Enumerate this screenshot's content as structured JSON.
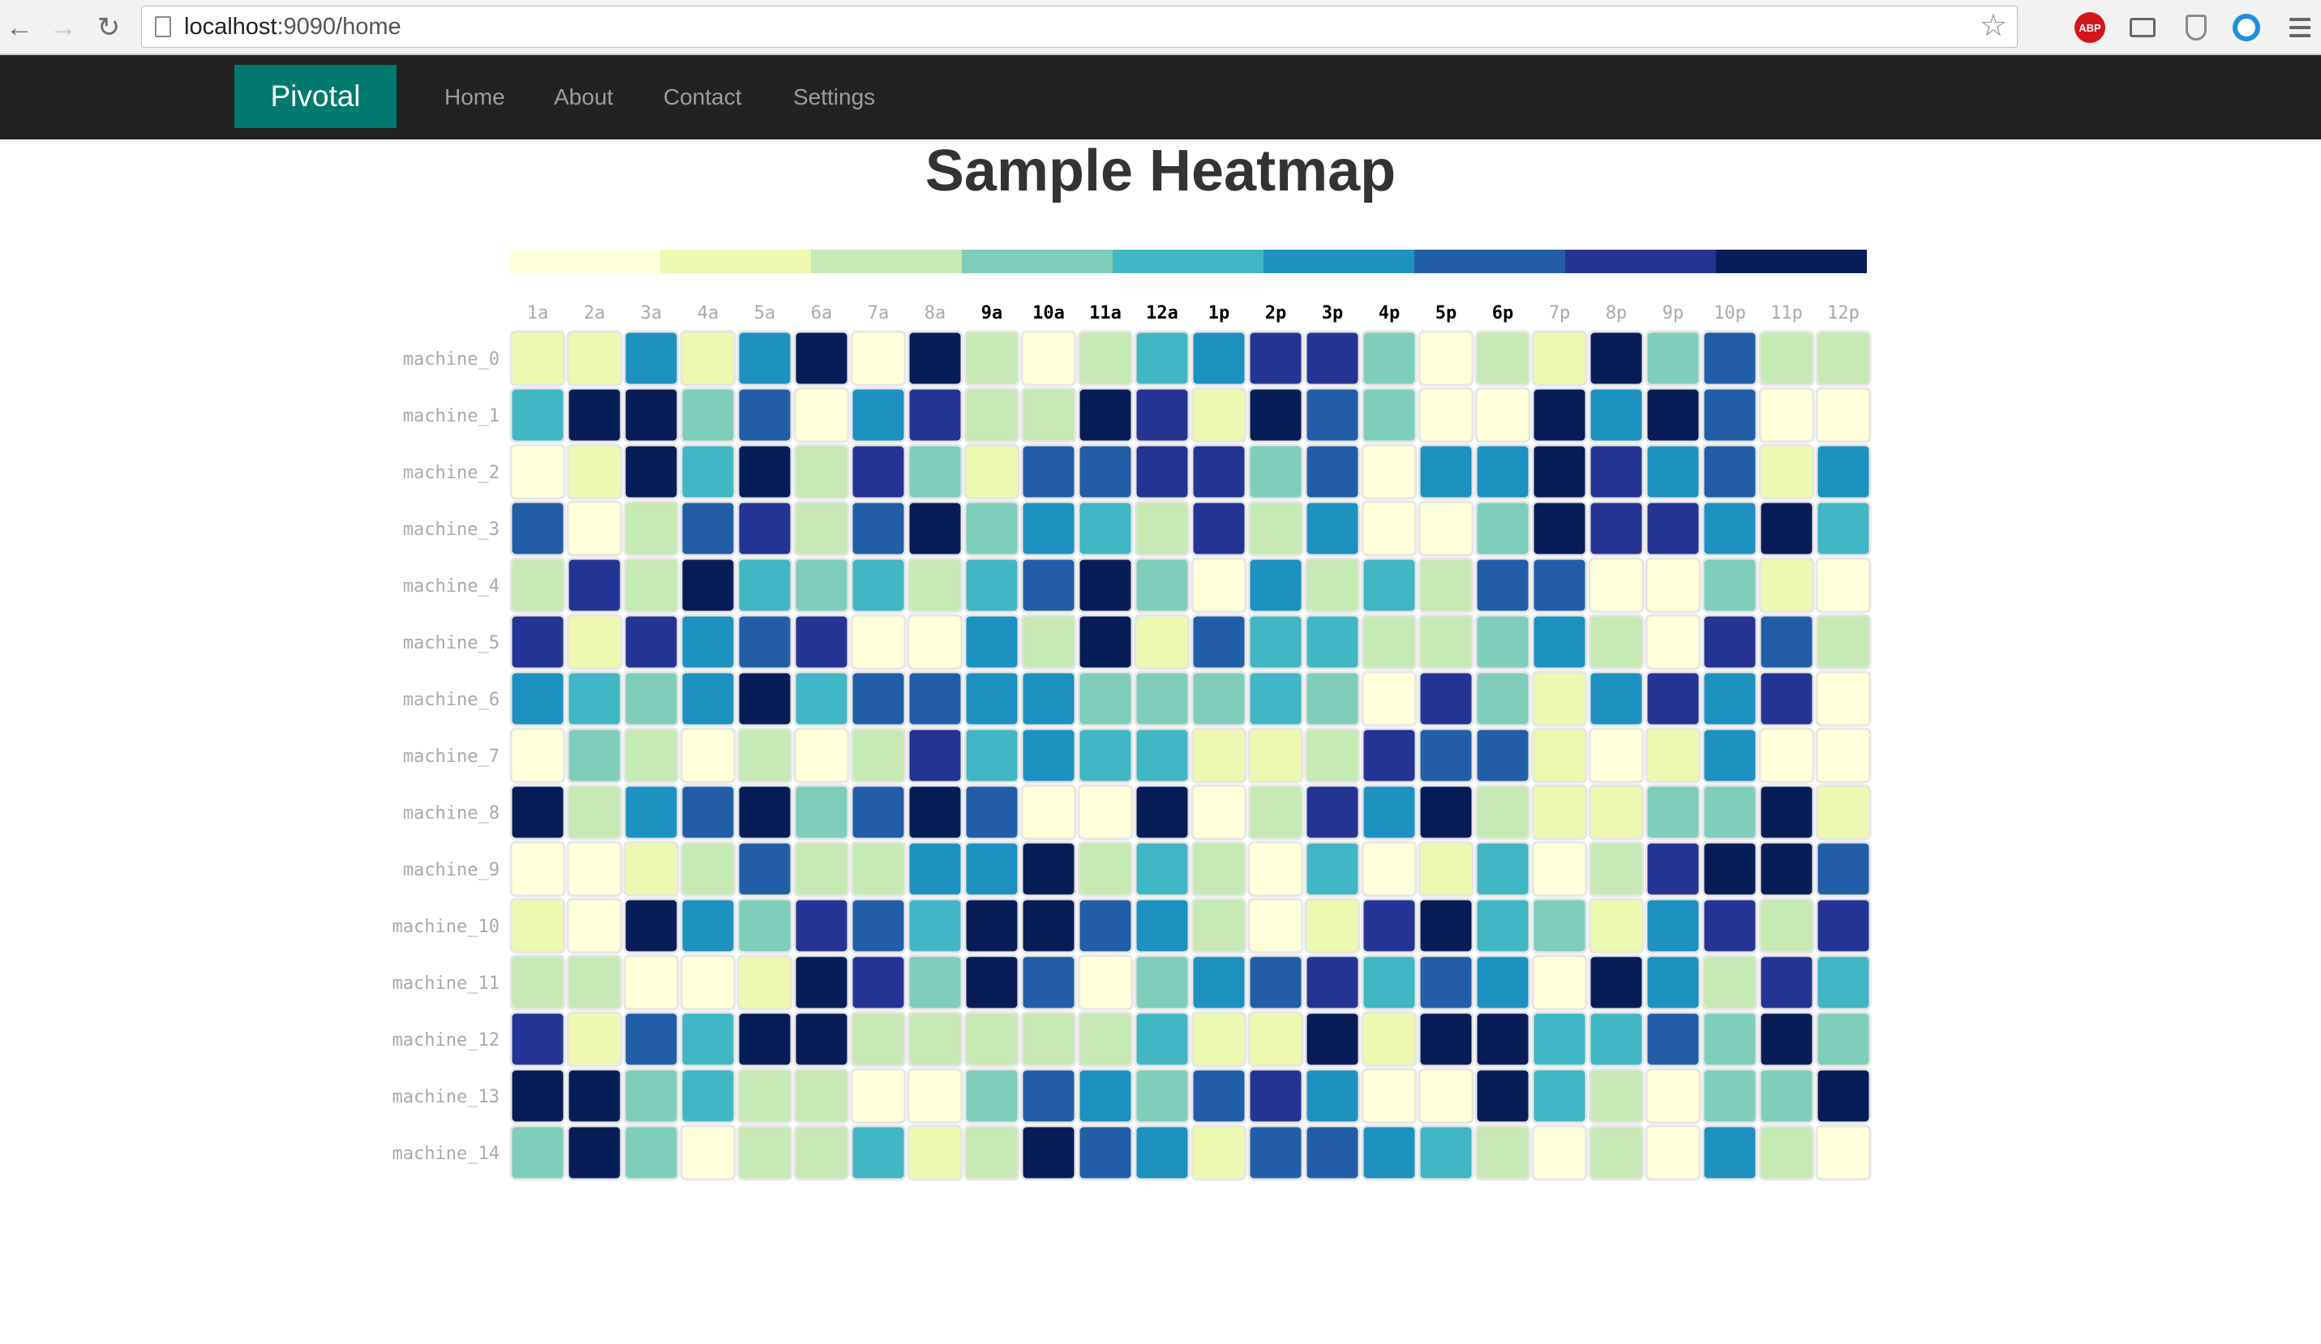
{
  "browser": {
    "url_host": "localhost",
    "url_rest": ":9090/home",
    "extension_abp_label": "ABP"
  },
  "navbar": {
    "brand": "Pivotal",
    "links": [
      "Home",
      "About",
      "Contact",
      "Settings"
    ]
  },
  "page": {
    "title": "Sample Heatmap"
  },
  "colors": {
    "navbar_bg": "#222222",
    "brand_bg": "#007a6e",
    "scale": [
      "#ffffd9",
      "#edf8b1",
      "#c7e9b4",
      "#7fcdbb",
      "#41b6c4",
      "#1d91c0",
      "#225ea8",
      "#253494",
      "#081d58"
    ]
  },
  "chart_data": {
    "type": "heatmap",
    "title": "Sample Heatmap",
    "x_labels": [
      "1a",
      "2a",
      "3a",
      "4a",
      "5a",
      "6a",
      "7a",
      "8a",
      "9a",
      "10a",
      "11a",
      "12a",
      "1p",
      "2p",
      "3p",
      "4p",
      "5p",
      "6p",
      "7p",
      "8p",
      "9p",
      "10p",
      "11p",
      "12p"
    ],
    "y_labels": [
      "machine_0",
      "machine_1",
      "machine_2",
      "machine_3",
      "machine_4",
      "machine_5",
      "machine_6",
      "machine_7",
      "machine_8",
      "machine_9",
      "machine_10",
      "machine_11",
      "machine_12",
      "machine_13",
      "machine_14"
    ],
    "legend_bins": 9,
    "values": [
      [
        1,
        1,
        5,
        1,
        5,
        8,
        0,
        8,
        2,
        0,
        2,
        4,
        5,
        7,
        7,
        3,
        0,
        2,
        1,
        8,
        3,
        6,
        2,
        2
      ],
      [
        4,
        8,
        8,
        3,
        6,
        0,
        5,
        7,
        2,
        2,
        8,
        7,
        1,
        8,
        6,
        3,
        0,
        0,
        8,
        5,
        8,
        6,
        0,
        0
      ],
      [
        0,
        1,
        8,
        4,
        8,
        2,
        7,
        3,
        1,
        6,
        6,
        7,
        7,
        3,
        6,
        0,
        5,
        5,
        8,
        7,
        5,
        6,
        1,
        5
      ],
      [
        6,
        0,
        2,
        6,
        7,
        2,
        6,
        8,
        3,
        5,
        4,
        2,
        7,
        2,
        5,
        0,
        0,
        3,
        8,
        7,
        7,
        5,
        8,
        4
      ],
      [
        2,
        7,
        2,
        8,
        4,
        3,
        4,
        2,
        4,
        6,
        8,
        3,
        0,
        5,
        2,
        4,
        2,
        6,
        6,
        0,
        0,
        3,
        1,
        0
      ],
      [
        7,
        1,
        7,
        5,
        6,
        7,
        0,
        0,
        5,
        2,
        8,
        1,
        6,
        4,
        4,
        2,
        2,
        3,
        5,
        2,
        0,
        7,
        6,
        2
      ],
      [
        5,
        4,
        3,
        5,
        8,
        4,
        6,
        6,
        5,
        5,
        3,
        3,
        3,
        4,
        3,
        0,
        7,
        3,
        1,
        5,
        7,
        5,
        7,
        0
      ],
      [
        0,
        3,
        2,
        0,
        2,
        0,
        2,
        7,
        4,
        5,
        4,
        4,
        1,
        1,
        2,
        7,
        6,
        6,
        1,
        0,
        1,
        5,
        0,
        0
      ],
      [
        8,
        2,
        5,
        6,
        8,
        3,
        6,
        8,
        6,
        0,
        0,
        8,
        0,
        2,
        7,
        5,
        8,
        2,
        1,
        1,
        3,
        3,
        8,
        1
      ],
      [
        0,
        0,
        1,
        2,
        6,
        2,
        2,
        5,
        5,
        8,
        2,
        4,
        2,
        0,
        4,
        0,
        1,
        4,
        0,
        2,
        7,
        8,
        8,
        6
      ],
      [
        1,
        0,
        8,
        5,
        3,
        7,
        6,
        4,
        8,
        8,
        6,
        5,
        2,
        0,
        1,
        7,
        8,
        4,
        3,
        1,
        5,
        7,
        2,
        7
      ],
      [
        2,
        2,
        0,
        0,
        1,
        8,
        7,
        3,
        8,
        6,
        0,
        3,
        5,
        6,
        7,
        4,
        6,
        5,
        0,
        8,
        5,
        2,
        7,
        4
      ],
      [
        7,
        1,
        6,
        4,
        8,
        8,
        2,
        2,
        2,
        2,
        2,
        4,
        1,
        1,
        8,
        1,
        8,
        8,
        4,
        4,
        6,
        3,
        8,
        3
      ],
      [
        8,
        8,
        3,
        4,
        2,
        2,
        0,
        0,
        3,
        6,
        5,
        3,
        6,
        7,
        5,
        0,
        0,
        8,
        4,
        2,
        0,
        3,
        3,
        8
      ],
      [
        3,
        8,
        3,
        0,
        2,
        2,
        4,
        1,
        2,
        8,
        6,
        5,
        1,
        6,
        6,
        5,
        4,
        2,
        0,
        2,
        0,
        5,
        2,
        0
      ]
    ]
  }
}
